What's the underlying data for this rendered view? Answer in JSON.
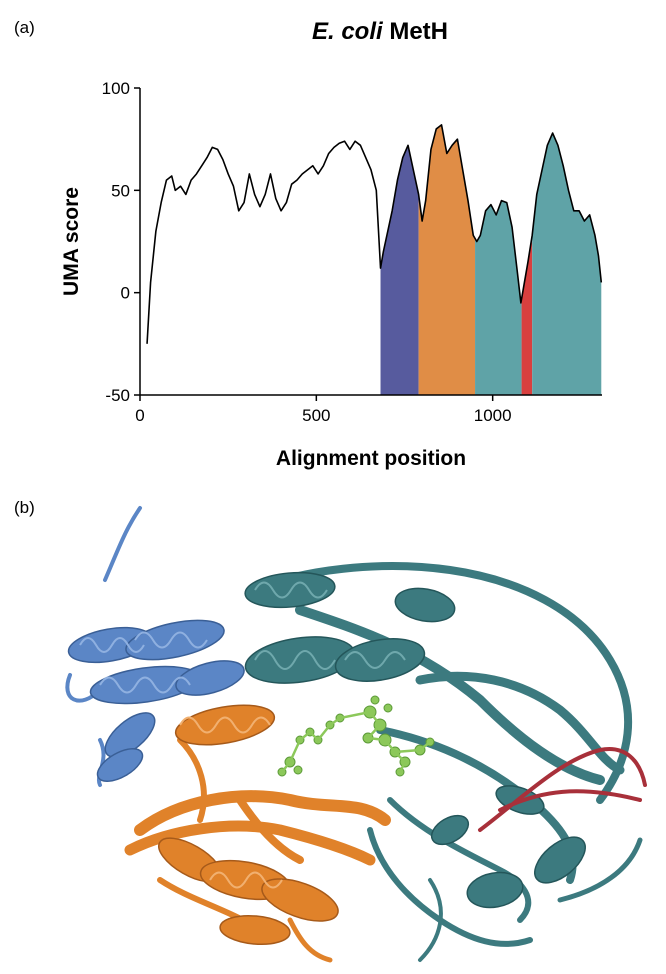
{
  "panel_labels": {
    "a": "(a)",
    "b": "(b)"
  },
  "title_italic": "E. coli",
  "title_rest": " MetH",
  "colors": {
    "line": "#000000",
    "domain_blue": "#575b9e",
    "domain_orange": "#e08d46",
    "domain_teal": "#5fa3a7",
    "domain_red": "#d8403f",
    "structure_blue": "#5b86c6",
    "structure_orange": "#e0822a",
    "structure_teal": "#3c7a7f",
    "structure_red": "#a8303a",
    "ligand_green": "#8cc85a"
  },
  "chart_data": {
    "type": "area",
    "xlabel": "Alignment position",
    "ylabel": "UMA score",
    "xlim": [
      0,
      1310
    ],
    "ylim": [
      -50,
      100
    ],
    "xticks": [
      0,
      500,
      1000
    ],
    "yticks": [
      -50,
      0,
      50,
      100
    ],
    "series": [
      {
        "x": [
          20,
          30,
          45,
          60,
          75,
          90,
          100,
          115,
          130,
          145,
          160,
          175,
          190,
          205,
          220,
          235,
          250,
          265,
          280,
          295,
          310,
          325,
          340,
          355,
          370,
          385,
          400,
          415,
          430,
          445,
          460,
          475,
          490,
          505,
          520,
          535,
          550,
          565,
          580,
          595,
          610,
          625,
          640,
          655,
          670,
          682,
          690,
          700,
          715,
          730,
          745,
          760,
          775,
          790,
          800,
          810,
          825,
          840,
          855,
          870,
          885,
          900,
          915,
          930,
          945,
          955,
          965,
          980,
          995,
          1010,
          1025,
          1040,
          1055,
          1070,
          1080,
          1090,
          1100,
          1112,
          1125,
          1140,
          1155,
          1170,
          1185,
          1200,
          1215,
          1230,
          1245,
          1260,
          1275,
          1290,
          1300,
          1308
        ],
        "y": [
          -25,
          5,
          30,
          44,
          55,
          57,
          50,
          52,
          48,
          55,
          58,
          62,
          66,
          71,
          70,
          65,
          58,
          52,
          40,
          44,
          58,
          48,
          42,
          48,
          58,
          46,
          40,
          44,
          53,
          55,
          58,
          60,
          62,
          58,
          62,
          68,
          71,
          73,
          74,
          70,
          74,
          72,
          66,
          60,
          50,
          12,
          20,
          28,
          40,
          55,
          66,
          72,
          60,
          48,
          35,
          45,
          70,
          80,
          82,
          68,
          72,
          75,
          60,
          45,
          28,
          25,
          28,
          40,
          43,
          38,
          45,
          44,
          32,
          10,
          -5,
          5,
          15,
          28,
          48,
          60,
          72,
          78,
          72,
          62,
          50,
          40,
          40,
          35,
          38,
          28,
          18,
          5
        ]
      }
    ],
    "domains": [
      {
        "color": "#575b9e",
        "x_start": 682,
        "x_end": 790
      },
      {
        "color": "#e08d46",
        "x_start": 790,
        "x_end": 950
      },
      {
        "color": "#5fa3a7",
        "x_start": 950,
        "x_end": 1082
      },
      {
        "color": "#d8403f",
        "x_start": 1082,
        "x_end": 1112
      },
      {
        "color": "#5fa3a7",
        "x_start": 1112,
        "x_end": 1308
      }
    ],
    "grid": false
  }
}
